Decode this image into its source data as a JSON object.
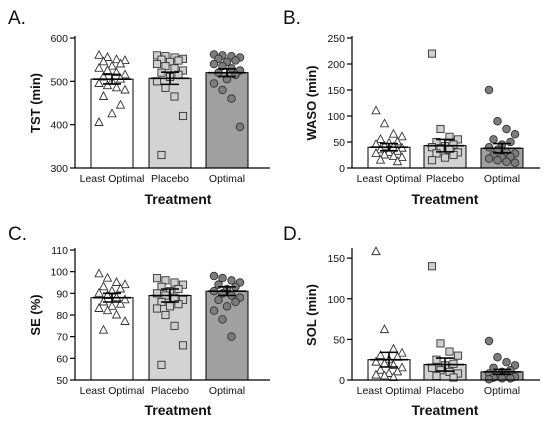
{
  "chart_data": [
    {
      "type": "bar",
      "panel_label": "A.",
      "title": "",
      "xlabel": "Treatment",
      "ylabel": "TST (min)",
      "ylim": [
        300,
        600
      ],
      "yticks": [
        300,
        400,
        500,
        600
      ],
      "categories": [
        "Least Optimal",
        "Placebo",
        "Optimal"
      ],
      "bar_colors": [
        "#ffffff",
        "#d3d3d3",
        "#a0a0a0"
      ],
      "marker_shapes": [
        "triangle",
        "square",
        "circle"
      ],
      "means": [
        505,
        507,
        520
      ],
      "sem": [
        11,
        14,
        9
      ],
      "points": [
        [
          560,
          555,
          550,
          548,
          545,
          540,
          535,
          530,
          525,
          520,
          515,
          510,
          505,
          500,
          495,
          490,
          485,
          480,
          465,
          445,
          425,
          405
        ],
        [
          560,
          558,
          555,
          552,
          550,
          548,
          545,
          540,
          535,
          530,
          525,
          520,
          515,
          510,
          500,
          485,
          465,
          420,
          330
        ],
        [
          562,
          560,
          558,
          555,
          552,
          548,
          545,
          540,
          535,
          530,
          525,
          520,
          515,
          505,
          495,
          480,
          460,
          395
        ]
      ]
    },
    {
      "type": "bar",
      "panel_label": "B.",
      "title": "",
      "xlabel": "Treatment",
      "ylabel": "WASO (min)",
      "ylim": [
        0,
        250
      ],
      "yticks": [
        0,
        50,
        100,
        150,
        200,
        250
      ],
      "categories": [
        "Least Optimal",
        "Placebo",
        "Optimal"
      ],
      "bar_colors": [
        "#ffffff",
        "#d3d3d3",
        "#a0a0a0"
      ],
      "marker_shapes": [
        "triangle",
        "square",
        "circle"
      ],
      "means": [
        40,
        43,
        38
      ],
      "sem": [
        7,
        12,
        9
      ],
      "points": [
        [
          110,
          85,
          65,
          60,
          55,
          50,
          48,
          45,
          42,
          40,
          38,
          35,
          32,
          30,
          28,
          25,
          22,
          20,
          15,
          12
        ],
        [
          220,
          75,
          60,
          55,
          50,
          45,
          42,
          40,
          38,
          35,
          30,
          28,
          25,
          20,
          15
        ],
        [
          150,
          90,
          75,
          65,
          55,
          50,
          45,
          40,
          35,
          30,
          28,
          25,
          22,
          20,
          18,
          15,
          12,
          10
        ]
      ]
    },
    {
      "type": "bar",
      "panel_label": "C.",
      "title": "",
      "xlabel": "Treatment",
      "ylabel": "SE (%)",
      "ylim": [
        50,
        110
      ],
      "yticks": [
        50,
        60,
        70,
        80,
        90,
        100,
        110
      ],
      "categories": [
        "Least Optimal",
        "Placebo",
        "Optimal"
      ],
      "bar_colors": [
        "#ffffff",
        "#d3d3d3",
        "#a0a0a0"
      ],
      "marker_shapes": [
        "triangle",
        "square",
        "circle"
      ],
      "means": [
        88,
        89,
        91
      ],
      "sem": [
        2,
        3,
        2
      ],
      "points": [
        [
          99,
          97,
          95,
          94,
          93,
          92,
          91,
          90,
          89,
          88,
          87,
          86,
          85,
          84,
          83,
          82,
          80,
          77,
          73
        ],
        [
          97,
          96,
          95,
          94,
          93,
          92,
          91,
          90,
          89,
          88,
          87,
          86,
          85,
          84,
          83,
          80,
          75,
          66,
          57
        ],
        [
          98,
          97,
          96,
          95,
          94,
          93,
          92,
          91,
          90,
          89,
          88,
          87,
          86,
          84,
          82,
          78,
          70
        ]
      ]
    },
    {
      "type": "bar",
      "panel_label": "D.",
      "title": "",
      "xlabel": "Treatment",
      "ylabel": "SOL (min)",
      "ylim": [
        0,
        160
      ],
      "yticks": [
        0,
        50,
        100,
        150
      ],
      "categories": [
        "Least Optimal",
        "Placebo",
        "Optimal"
      ],
      "bar_colors": [
        "#ffffff",
        "#d3d3d3",
        "#a0a0a0"
      ],
      "marker_shapes": [
        "triangle",
        "square",
        "circle"
      ],
      "means": [
        25,
        19,
        10
      ],
      "sem": [
        9,
        8,
        3
      ],
      "points": [
        [
          158,
          62,
          38,
          33,
          30,
          28,
          25,
          22,
          20,
          18,
          15,
          12,
          10,
          8,
          6,
          5,
          3
        ],
        [
          140,
          45,
          35,
          30,
          25,
          20,
          18,
          15,
          12,
          10,
          8,
          5,
          3
        ],
        [
          48,
          28,
          22,
          18,
          15,
          12,
          10,
          8,
          6,
          5,
          4,
          3,
          2,
          2,
          1
        ]
      ]
    }
  ]
}
